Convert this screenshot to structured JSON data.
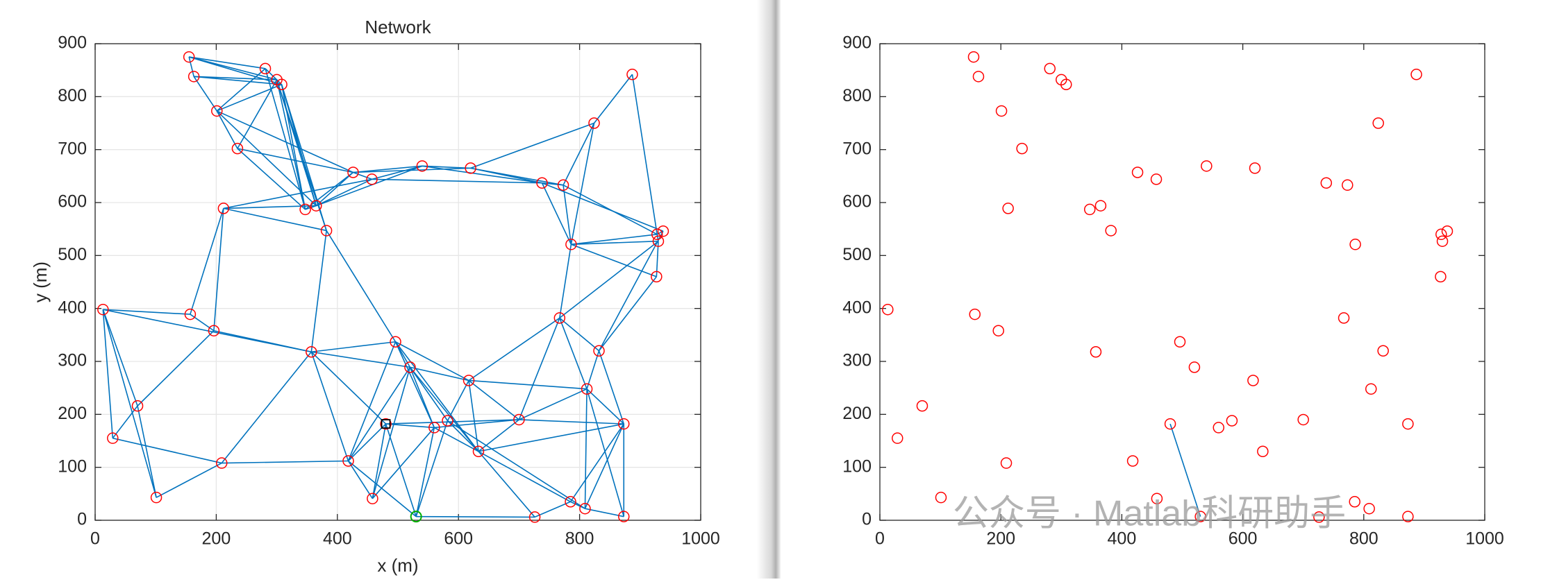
{
  "chart_data": [
    {
      "type": "network",
      "title": "Network",
      "xlabel": "x (m)",
      "ylabel": "y (m)",
      "x": [
        13,
        29,
        70,
        101,
        155,
        163,
        201,
        196,
        157,
        212,
        209,
        235,
        281,
        300,
        308,
        347,
        365,
        382,
        357,
        426,
        457,
        540,
        620,
        738,
        773,
        786,
        824,
        887,
        928,
        938,
        930,
        927,
        767,
        832,
        812,
        873,
        873,
        809,
        785,
        726,
        700,
        633,
        582,
        560,
        617,
        520,
        496,
        480,
        418,
        458,
        530
      ],
      "y": [
        398,
        155,
        216,
        43,
        875,
        838,
        773,
        358,
        389,
        589,
        108,
        702,
        853,
        832,
        823,
        587,
        594,
        547,
        318,
        657,
        644,
        669,
        665,
        637,
        633,
        521,
        750,
        842,
        540,
        546,
        527,
        460,
        382,
        320,
        248,
        182,
        7,
        22,
        35,
        6,
        190,
        130,
        188,
        175,
        264,
        289,
        337,
        182,
        112,
        41,
        7
      ],
      "edges": [
        [
          0,
          1
        ],
        [
          0,
          2
        ],
        [
          0,
          3
        ],
        [
          0,
          8
        ],
        [
          0,
          18
        ],
        [
          1,
          2
        ],
        [
          1,
          10
        ],
        [
          2,
          3
        ],
        [
          2,
          7
        ],
        [
          3,
          10
        ],
        [
          7,
          8
        ],
        [
          7,
          9
        ],
        [
          8,
          9
        ],
        [
          10,
          48
        ],
        [
          4,
          5
        ],
        [
          4,
          12
        ],
        [
          4,
          13
        ],
        [
          4,
          14
        ],
        [
          5,
          6
        ],
        [
          5,
          13
        ],
        [
          5,
          14
        ],
        [
          6,
          11
        ],
        [
          6,
          12
        ],
        [
          6,
          14
        ],
        [
          6,
          16
        ],
        [
          6,
          19
        ],
        [
          11,
          13
        ],
        [
          11,
          15
        ],
        [
          11,
          19
        ],
        [
          12,
          14
        ],
        [
          12,
          15
        ],
        [
          13,
          15
        ],
        [
          13,
          16
        ],
        [
          13,
          17
        ],
        [
          14,
          15
        ],
        [
          14,
          16
        ],
        [
          14,
          17
        ],
        [
          9,
          16
        ],
        [
          9,
          17
        ],
        [
          9,
          20
        ],
        [
          15,
          16
        ],
        [
          15,
          19
        ],
        [
          16,
          19
        ],
        [
          16,
          20
        ],
        [
          16,
          21
        ],
        [
          17,
          18
        ],
        [
          17,
          46
        ],
        [
          19,
          20
        ],
        [
          19,
          21
        ],
        [
          20,
          21
        ],
        [
          20,
          23
        ],
        [
          19,
          22
        ],
        [
          21,
          22
        ],
        [
          21,
          23
        ],
        [
          22,
          23
        ],
        [
          22,
          24
        ],
        [
          23,
          24
        ],
        [
          23,
          25
        ],
        [
          24,
          26
        ],
        [
          24,
          25
        ],
        [
          22,
          26
        ],
        [
          26,
          27
        ],
        [
          26,
          25
        ],
        [
          27,
          28
        ],
        [
          24,
          28
        ],
        [
          25,
          28
        ],
        [
          25,
          30
        ],
        [
          25,
          31
        ],
        [
          28,
          29
        ],
        [
          28,
          30
        ],
        [
          23,
          29
        ],
        [
          25,
          32
        ],
        [
          30,
          31
        ],
        [
          29,
          33
        ],
        [
          30,
          32
        ],
        [
          31,
          33
        ],
        [
          32,
          34
        ],
        [
          32,
          33
        ],
        [
          32,
          44
        ],
        [
          33,
          34
        ],
        [
          32,
          40
        ],
        [
          34,
          35
        ],
        [
          33,
          35
        ],
        [
          34,
          36
        ],
        [
          34,
          37
        ],
        [
          34,
          44
        ],
        [
          35,
          36
        ],
        [
          35,
          37
        ],
        [
          35,
          38
        ],
        [
          34,
          40
        ],
        [
          40,
          35
        ],
        [
          36,
          37
        ],
        [
          37,
          38
        ],
        [
          38,
          39
        ],
        [
          38,
          41
        ],
        [
          39,
          41
        ],
        [
          39,
          50
        ],
        [
          40,
          41
        ],
        [
          40,
          43
        ],
        [
          40,
          44
        ],
        [
          41,
          44
        ],
        [
          41,
          42
        ],
        [
          41,
          43
        ],
        [
          41,
          45
        ],
        [
          41,
          46
        ],
        [
          42,
          44
        ],
        [
          42,
          45
        ],
        [
          43,
          45
        ],
        [
          43,
          46
        ],
        [
          43,
          47
        ],
        [
          44,
          45
        ],
        [
          44,
          46
        ],
        [
          45,
          46
        ],
        [
          46,
          18
        ],
        [
          18,
          47
        ],
        [
          18,
          48
        ],
        [
          18,
          10
        ],
        [
          18,
          7
        ],
        [
          45,
          48
        ],
        [
          46,
          48
        ],
        [
          47,
          48
        ],
        [
          47,
          49
        ],
        [
          47,
          50
        ],
        [
          48,
          49
        ],
        [
          48,
          50
        ],
        [
          49,
          45
        ],
        [
          49,
          43
        ],
        [
          50,
          43
        ],
        [
          50,
          42
        ],
        [
          47,
          40
        ],
        [
          41,
          35
        ],
        [
          42,
          37
        ],
        [
          18,
          45
        ]
      ],
      "sink": 47,
      "source": 50,
      "node_color": "#ff0000",
      "edge_color": "#0072bd",
      "sink_color": "#000000",
      "source_color": "#00b000",
      "xlim": [
        0,
        1000
      ],
      "ylim": [
        0,
        900
      ],
      "xticks": [
        0,
        200,
        400,
        600,
        800,
        1000
      ],
      "yticks": [
        0,
        100,
        200,
        300,
        400,
        500,
        600,
        700,
        800,
        900
      ],
      "grid": true
    },
    {
      "type": "scatter",
      "x": [
        13,
        29,
        70,
        101,
        155,
        163,
        201,
        196,
        157,
        212,
        209,
        235,
        281,
        300,
        308,
        347,
        365,
        382,
        357,
        426,
        457,
        540,
        620,
        738,
        773,
        786,
        824,
        887,
        928,
        938,
        930,
        927,
        767,
        832,
        812,
        873,
        873,
        809,
        785,
        726,
        700,
        633,
        582,
        560,
        617,
        520,
        496,
        480,
        418,
        458,
        530
      ],
      "y": [
        398,
        155,
        216,
        43,
        875,
        838,
        773,
        358,
        389,
        589,
        108,
        702,
        853,
        832,
        823,
        587,
        594,
        547,
        318,
        657,
        644,
        669,
        665,
        637,
        633,
        521,
        750,
        842,
        540,
        546,
        527,
        460,
        382,
        320,
        248,
        182,
        7,
        22,
        35,
        6,
        190,
        130,
        188,
        175,
        264,
        289,
        337,
        182,
        112,
        41,
        7
      ],
      "edges": [
        [
          47,
          50
        ]
      ],
      "node_color": "#ff0000",
      "edge_color": "#0072bd",
      "xlim": [
        0,
        1000
      ],
      "ylim": [
        0,
        900
      ],
      "xticks": [
        0,
        200,
        400,
        600,
        800,
        1000
      ],
      "yticks": [
        0,
        100,
        200,
        300,
        400,
        500,
        600,
        700,
        800,
        900
      ],
      "grid": false
    }
  ],
  "watermark": "公众号 · Matlab科研助手"
}
